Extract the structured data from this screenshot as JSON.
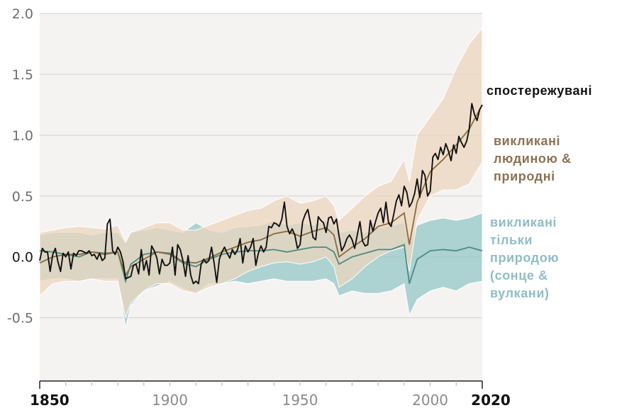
{
  "chart_data": {
    "type": "line",
    "title": "",
    "xlabel": "",
    "ylabel": "",
    "xlim": [
      1850,
      2020
    ],
    "ylim": [
      -1.02,
      2.0
    ],
    "grid": true,
    "y_ticks": [
      {
        "value": 2.0,
        "label": "2.0"
      },
      {
        "value": 1.5,
        "label": "1.5"
      },
      {
        "value": 1.0,
        "label": "1.0"
      },
      {
        "value": 0.5,
        "label": "0.5"
      },
      {
        "value": 0.0,
        "label": "0.0"
      },
      {
        "value": -0.5,
        "label": "-0.5"
      }
    ],
    "x_ticks_labeled": [
      {
        "value": 1850,
        "label": "1850",
        "bold": true
      },
      {
        "value": 1900,
        "label": "1900",
        "bold": false
      },
      {
        "value": 1950,
        "label": "1950",
        "bold": false
      },
      {
        "value": 2000,
        "label": "2000",
        "bold": false
      },
      {
        "value": 2020,
        "label": "2020",
        "bold": true
      }
    ],
    "x_minor_tick_step": 10,
    "legend_placement": "right",
    "colors": {
      "background": "#f5f3f2",
      "grid": "#d8d6d6",
      "observed": "#111111",
      "human_natural_line": "#8a6a3c",
      "human_natural_band": "#ecd6bd",
      "natural_line": "#4d8a80",
      "natural_band": "#9fcbcc"
    },
    "series": [
      {
        "name": "спостережувані",
        "key": "observed",
        "x": [
          1850,
          1851,
          1852,
          1853,
          1854,
          1855,
          1856,
          1857,
          1858,
          1859,
          1860,
          1861,
          1862,
          1863,
          1864,
          1865,
          1866,
          1867,
          1868,
          1869,
          1870,
          1871,
          1872,
          1873,
          1874,
          1875,
          1876,
          1877,
          1878,
          1879,
          1880,
          1881,
          1882,
          1883,
          1884,
          1885,
          1886,
          1887,
          1888,
          1889,
          1890,
          1891,
          1892,
          1893,
          1894,
          1895,
          1896,
          1897,
          1898,
          1899,
          1900,
          1901,
          1902,
          1903,
          1904,
          1905,
          1906,
          1907,
          1908,
          1909,
          1910,
          1911,
          1912,
          1913,
          1914,
          1915,
          1916,
          1917,
          1918,
          1919,
          1920,
          1921,
          1922,
          1923,
          1924,
          1925,
          1926,
          1927,
          1928,
          1929,
          1930,
          1931,
          1932,
          1933,
          1934,
          1935,
          1936,
          1937,
          1938,
          1939,
          1940,
          1941,
          1942,
          1943,
          1944,
          1945,
          1946,
          1947,
          1948,
          1949,
          1950,
          1951,
          1952,
          1953,
          1954,
          1955,
          1956,
          1957,
          1958,
          1959,
          1960,
          1961,
          1962,
          1963,
          1964,
          1965,
          1966,
          1967,
          1968,
          1969,
          1970,
          1971,
          1972,
          1973,
          1974,
          1975,
          1976,
          1977,
          1978,
          1979,
          1980,
          1981,
          1982,
          1983,
          1984,
          1985,
          1986,
          1987,
          1988,
          1989,
          1990,
          1991,
          1992,
          1993,
          1994,
          1995,
          1996,
          1997,
          1998,
          1999,
          2000,
          2001,
          2002,
          2003,
          2004,
          2005,
          2006,
          2007,
          2008,
          2009,
          2010,
          2011,
          2012,
          2013,
          2014,
          2015,
          2016,
          2017,
          2018,
          2019,
          2020
        ],
        "values": [
          -0.03,
          0.07,
          0.04,
          0.04,
          -0.12,
          0.02,
          0.07,
          -0.04,
          -0.12,
          0.03,
          0.0,
          0.04,
          -0.1,
          0.03,
          0.01,
          0.05,
          0.05,
          0.04,
          0.03,
          0.05,
          0.01,
          0.02,
          -0.02,
          0.03,
          -0.03,
          -0.01,
          0.27,
          0.31,
          0.05,
          0.02,
          0.08,
          0.04,
          -0.04,
          -0.18,
          -0.17,
          -0.16,
          -0.07,
          -0.06,
          -0.14,
          0.06,
          -0.11,
          -0.03,
          -0.15,
          0.09,
          0.05,
          -0.01,
          -0.14,
          -0.02,
          -0.07,
          -0.07,
          -0.05,
          0.08,
          -0.15,
          0.1,
          0.06,
          -0.03,
          -0.16,
          0.01,
          -0.15,
          -0.22,
          -0.2,
          -0.22,
          -0.06,
          -0.02,
          -0.05,
          -0.03,
          0.08,
          -0.05,
          -0.21,
          -0.02,
          0.04,
          0.08,
          0.03,
          -0.01,
          0.06,
          0.02,
          0.06,
          0.15,
          -0.05,
          0.09,
          0.04,
          0.08,
          0.15,
          -0.07,
          0.03,
          0.09,
          0.04,
          0.08,
          0.25,
          0.24,
          0.28,
          0.27,
          0.25,
          0.31,
          0.45,
          0.25,
          0.19,
          0.23,
          0.18,
          0.07,
          0.1,
          0.29,
          0.35,
          0.39,
          0.28,
          0.16,
          0.14,
          0.33,
          0.3,
          0.28,
          0.2,
          0.32,
          0.33,
          0.27,
          0.31,
          0.17,
          0.05,
          0.09,
          0.15,
          0.18,
          0.14,
          0.07,
          0.18,
          0.29,
          0.13,
          0.09,
          0.1,
          0.3,
          0.21,
          0.29,
          0.36,
          0.4,
          0.28,
          0.45,
          0.28,
          0.25,
          0.35,
          0.46,
          0.51,
          0.42,
          0.58,
          0.53,
          0.41,
          0.45,
          0.52,
          0.64,
          0.49,
          0.71,
          0.67,
          0.5,
          0.54,
          0.82,
          0.85,
          0.8,
          0.9,
          0.84,
          0.93,
          0.87,
          0.79,
          0.92,
          0.85,
          0.99,
          0.94,
          0.9,
          0.95,
          1.05,
          1.26,
          1.17,
          1.12,
          1.21,
          1.25
        ]
      },
      {
        "name": "викликані людиною & природні",
        "key": "human_natural",
        "x": [
          1850,
          1855,
          1860,
          1865,
          1870,
          1875,
          1880,
          1883,
          1885,
          1890,
          1895,
          1900,
          1905,
          1910,
          1915,
          1920,
          1925,
          1930,
          1935,
          1940,
          1945,
          1950,
          1955,
          1960,
          1963,
          1965,
          1970,
          1975,
          1980,
          1985,
          1990,
          1992,
          1995,
          2000,
          2005,
          2010,
          2015,
          2020
        ],
        "values": [
          -0.05,
          0.0,
          0.02,
          0.02,
          0.04,
          0.02,
          0.04,
          -0.15,
          -0.08,
          -0.02,
          0.04,
          0.03,
          -0.04,
          -0.05,
          -0.01,
          0.04,
          0.08,
          0.12,
          0.14,
          0.19,
          0.21,
          0.17,
          0.21,
          0.24,
          0.18,
          0.0,
          0.08,
          0.15,
          0.25,
          0.28,
          0.36,
          0.1,
          0.45,
          0.7,
          0.8,
          0.92,
          1.05,
          1.25
        ],
        "band_lower": [
          -0.32,
          -0.22,
          -0.2,
          -0.2,
          -0.18,
          -0.2,
          -0.2,
          -0.5,
          -0.38,
          -0.28,
          -0.22,
          -0.22,
          -0.28,
          -0.3,
          -0.25,
          -0.22,
          -0.18,
          -0.12,
          -0.08,
          -0.05,
          -0.04,
          -0.06,
          -0.04,
          0.0,
          -0.08,
          -0.25,
          -0.18,
          -0.08,
          0.0,
          0.05,
          0.08,
          -0.12,
          0.3,
          0.5,
          0.55,
          0.55,
          0.6,
          0.78
        ],
        "band_upper": [
          0.2,
          0.22,
          0.24,
          0.25,
          0.24,
          0.23,
          0.26,
          0.12,
          0.2,
          0.24,
          0.28,
          0.28,
          0.22,
          0.22,
          0.26,
          0.3,
          0.34,
          0.38,
          0.4,
          0.46,
          0.5,
          0.44,
          0.46,
          0.5,
          0.42,
          0.3,
          0.4,
          0.5,
          0.58,
          0.62,
          0.8,
          0.62,
          1.0,
          1.15,
          1.3,
          1.55,
          1.75,
          1.88
        ]
      },
      {
        "name": "викликані тільки природою (сонце & вулкани)",
        "key": "natural",
        "x": [
          1850,
          1855,
          1860,
          1865,
          1870,
          1875,
          1880,
          1883,
          1885,
          1890,
          1895,
          1900,
          1905,
          1910,
          1915,
          1920,
          1925,
          1930,
          1935,
          1940,
          1945,
          1950,
          1955,
          1960,
          1963,
          1965,
          1970,
          1975,
          1980,
          1985,
          1990,
          1992,
          1995,
          2000,
          2005,
          2010,
          2015,
          2020
        ],
        "values": [
          0.05,
          0.04,
          0.02,
          0.0,
          0.04,
          0.03,
          0.04,
          -0.2,
          -0.06,
          0.02,
          0.04,
          0.02,
          -0.05,
          -0.08,
          -0.02,
          0.02,
          0.04,
          0.05,
          0.05,
          0.06,
          0.04,
          0.06,
          0.08,
          0.08,
          0.04,
          -0.06,
          0.0,
          0.03,
          0.06,
          0.06,
          0.1,
          -0.22,
          -0.02,
          0.05,
          0.06,
          0.05,
          0.08,
          0.05
        ],
        "band_lower": [
          -0.2,
          -0.18,
          -0.18,
          -0.2,
          -0.18,
          -0.18,
          -0.18,
          -0.58,
          -0.4,
          -0.28,
          -0.24,
          -0.2,
          -0.26,
          -0.3,
          -0.22,
          -0.22,
          -0.2,
          -0.22,
          -0.2,
          -0.18,
          -0.2,
          -0.2,
          -0.2,
          -0.18,
          -0.22,
          -0.32,
          -0.28,
          -0.3,
          -0.3,
          -0.28,
          -0.22,
          -0.48,
          -0.35,
          -0.28,
          -0.25,
          -0.28,
          -0.22,
          -0.2
        ],
        "band_upper": [
          0.18,
          0.2,
          0.2,
          0.2,
          0.18,
          0.2,
          0.2,
          0.12,
          0.2,
          0.22,
          0.24,
          0.22,
          0.2,
          0.28,
          0.22,
          0.2,
          0.24,
          0.25,
          0.26,
          0.3,
          0.26,
          0.28,
          0.26,
          0.3,
          0.26,
          0.2,
          0.22,
          0.2,
          0.24,
          0.26,
          0.28,
          0.1,
          0.26,
          0.3,
          0.32,
          0.3,
          0.32,
          0.36
        ]
      }
    ],
    "legend": [
      {
        "key": "observed",
        "label": "спостережувані"
      },
      {
        "key": "human_natural",
        "label": "викликані\nлюдиною &\nприродні"
      },
      {
        "key": "natural",
        "label": "викликані\nтільки\nприродою\n(сонце &\nвулкани)"
      }
    ]
  }
}
